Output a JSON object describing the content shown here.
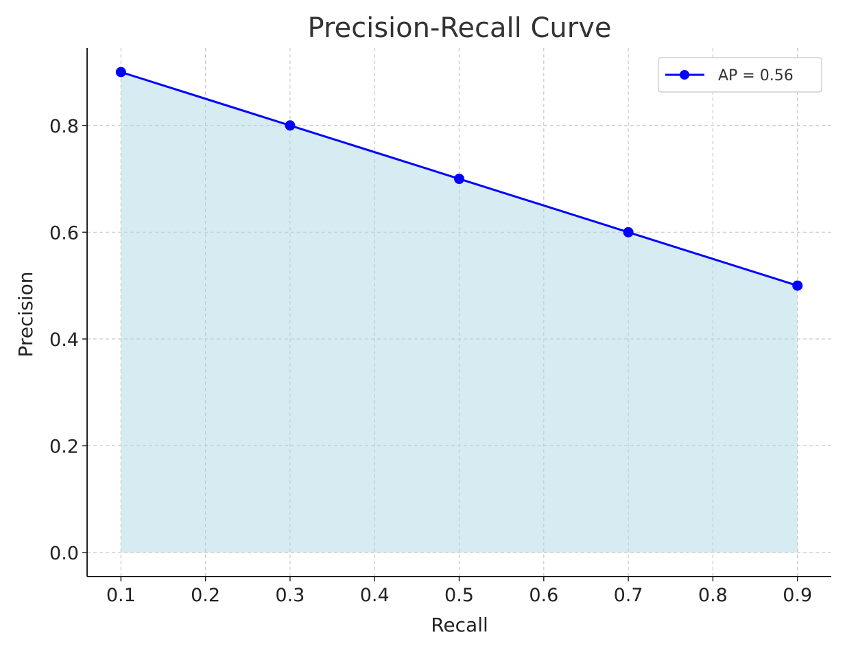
{
  "chart_data": {
    "type": "line",
    "title": "Precision-Recall Curve",
    "xlabel": "Recall",
    "ylabel": "Precision",
    "xlim": [
      0.06,
      0.94
    ],
    "ylim": [
      -0.045,
      0.945
    ],
    "xticks": [
      0.1,
      0.2,
      0.3,
      0.4,
      0.5,
      0.6,
      0.7,
      0.8,
      0.9
    ],
    "xtick_labels": [
      "0.1",
      "0.2",
      "0.3",
      "0.4",
      "0.5",
      "0.6",
      "0.7",
      "0.8",
      "0.9"
    ],
    "yticks": [
      0.0,
      0.2,
      0.4,
      0.6,
      0.8
    ],
    "ytick_labels": [
      "0.0",
      "0.2",
      "0.4",
      "0.6",
      "0.8"
    ],
    "grid": true,
    "legend_position": "top-right",
    "series": [
      {
        "name": "AP = 0.56",
        "x": [
          0.1,
          0.3,
          0.5,
          0.7,
          0.9
        ],
        "y": [
          0.9,
          0.8,
          0.7,
          0.6,
          0.5
        ],
        "color": "#0000ff",
        "marker": "circle",
        "fill_under": true,
        "fill_color": "#add8e6"
      }
    ]
  }
}
